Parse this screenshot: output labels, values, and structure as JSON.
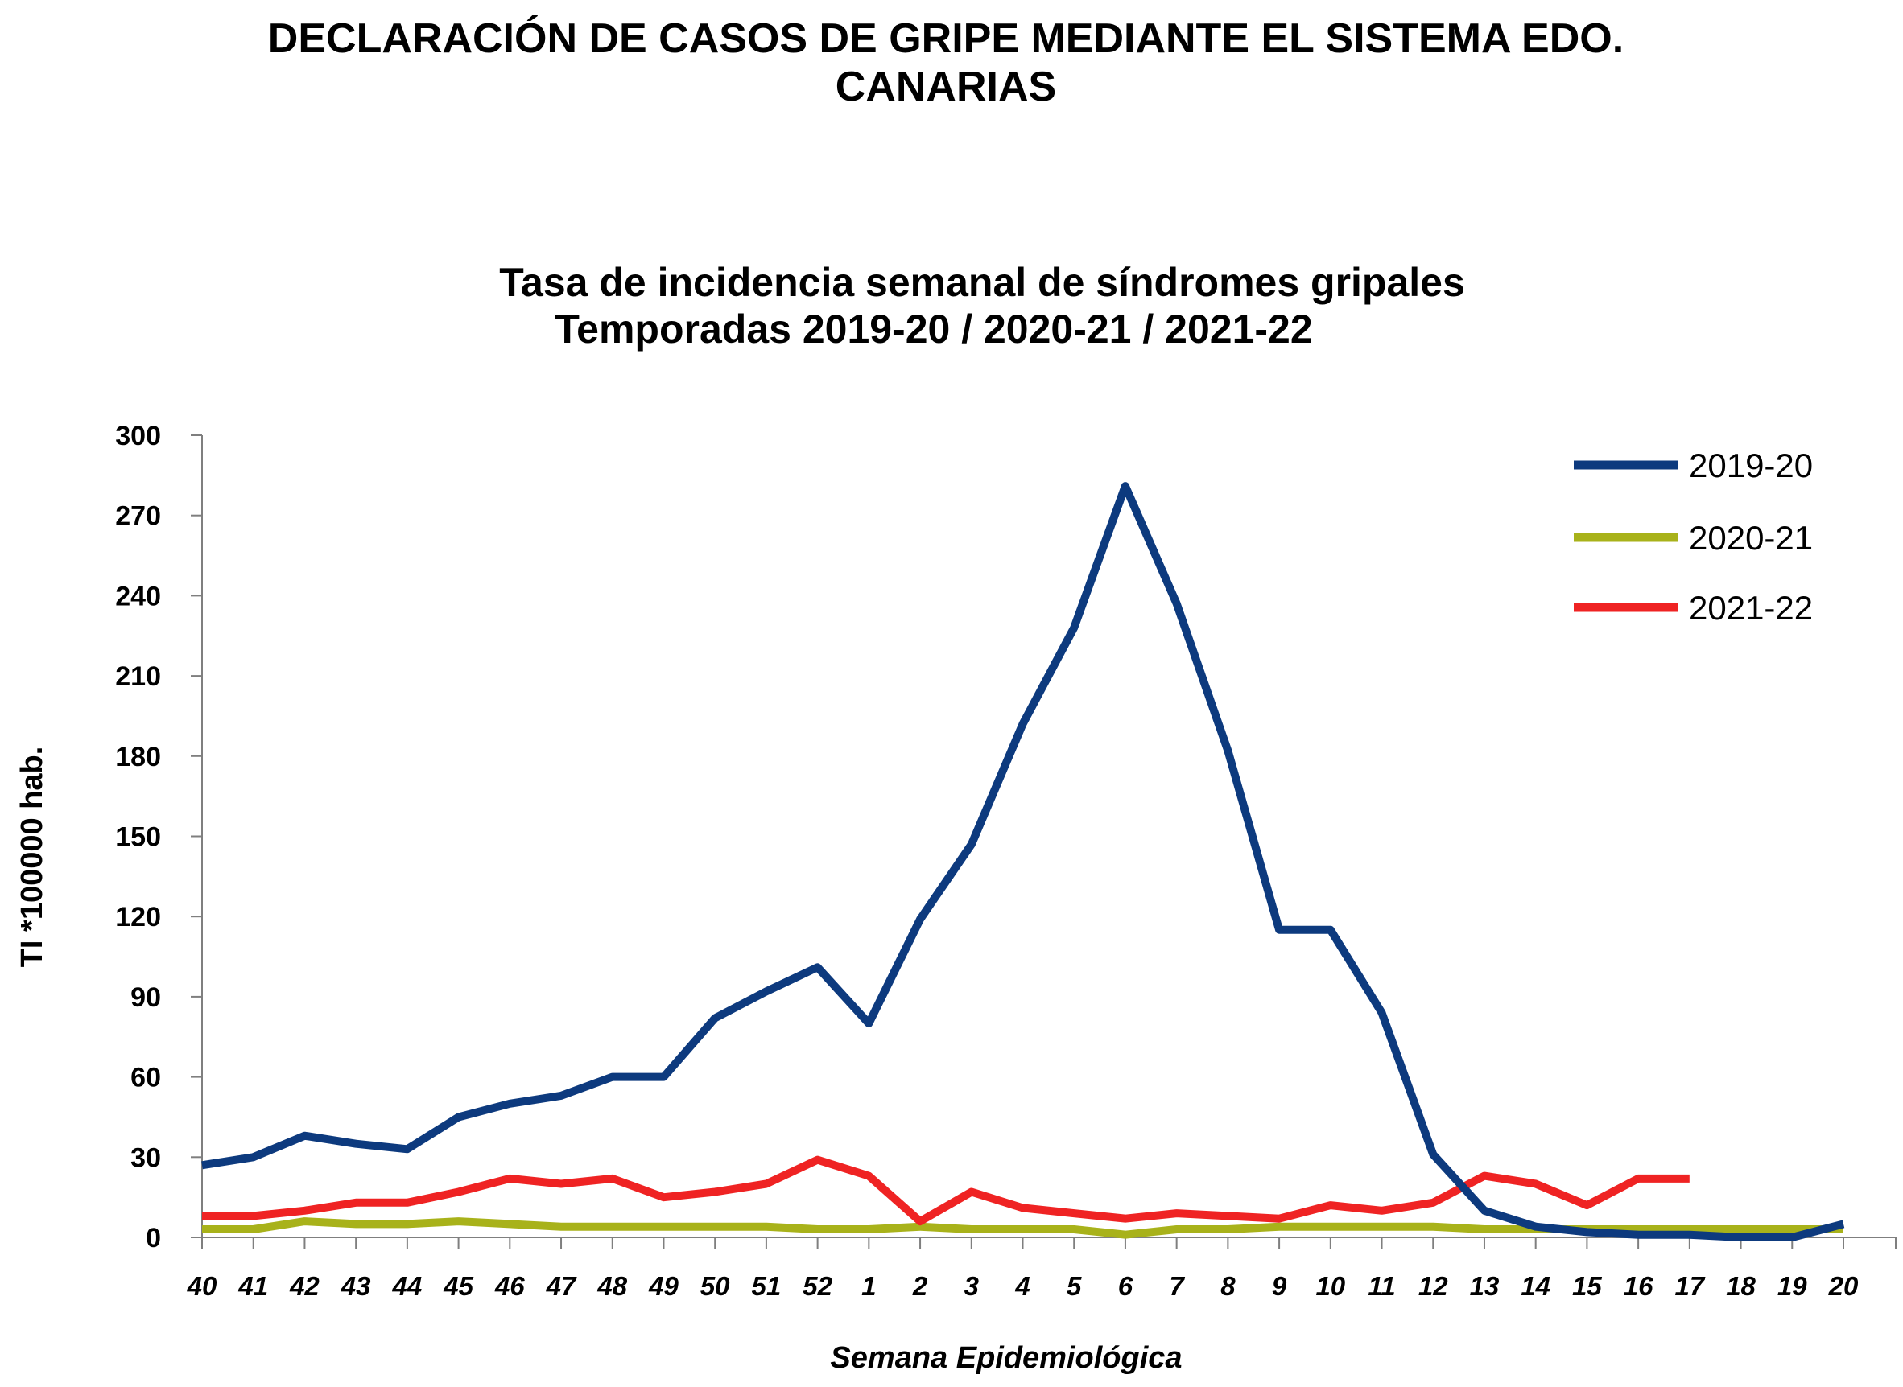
{
  "header": {
    "title_line1": "DECLARACIÓN DE CASOS DE GRIPE MEDIANTE EL SISTEMA EDO.",
    "title_line2": "CANARIAS"
  },
  "chart_data": {
    "type": "line",
    "title": "Tasa de incidencia semanal de síndromes gripales",
    "subtitle": "Temporadas  2019-20  /  2020-21  /  2021-22",
    "xlabel": "Semana Epidemiológica",
    "ylabel": "TI *100000 hab.",
    "ylim": [
      0,
      300
    ],
    "yticks": [
      0,
      30,
      60,
      90,
      120,
      150,
      180,
      210,
      240,
      270,
      300
    ],
    "legend_position": "top-right",
    "grid": false,
    "categories": [
      "40",
      "41",
      "42",
      "43",
      "44",
      "45",
      "46",
      "47",
      "48",
      "49",
      "50",
      "51",
      "52",
      "1",
      "2",
      "3",
      "4",
      "5",
      "6",
      "7",
      "8",
      "9",
      "10",
      "11",
      "12",
      "13",
      "14",
      "15",
      "16",
      "17",
      "18",
      "19",
      "20"
    ],
    "series": [
      {
        "name": "2019-20",
        "color": "#0d3a7e",
        "values": [
          27,
          30,
          38,
          35,
          33,
          45,
          50,
          53,
          60,
          60,
          82,
          92,
          101,
          80,
          119,
          147,
          192,
          228,
          281,
          237,
          182,
          115,
          115,
          84,
          31,
          10,
          4,
          2,
          1,
          1,
          0,
          0,
          5
        ]
      },
      {
        "name": "2020-21",
        "color": "#a8b21a",
        "values": [
          3,
          3,
          6,
          5,
          5,
          6,
          5,
          4,
          4,
          4,
          4,
          4,
          3,
          3,
          4,
          3,
          3,
          3,
          1,
          3,
          3,
          4,
          4,
          4,
          4,
          3,
          3,
          3,
          3,
          3,
          3,
          3,
          3
        ]
      },
      {
        "name": "2021-22",
        "color": "#ef2323",
        "values": [
          8,
          8,
          10,
          13,
          13,
          17,
          22,
          20,
          22,
          15,
          17,
          20,
          29,
          23,
          6,
          17,
          11,
          9,
          7,
          9,
          8,
          7,
          12,
          10,
          13,
          23,
          20,
          12,
          22,
          22,
          null,
          null,
          null
        ]
      }
    ]
  }
}
